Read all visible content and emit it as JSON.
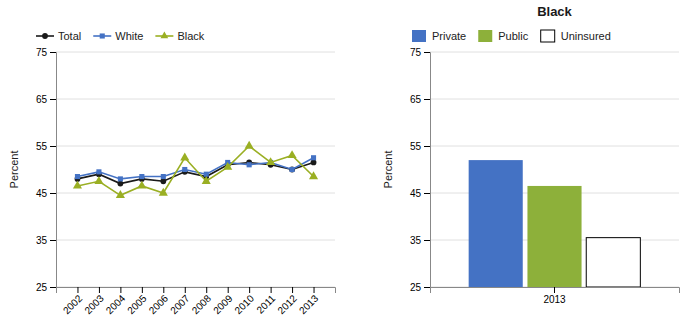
{
  "chart_data": [
    {
      "type": "line",
      "x": [
        2002,
        2003,
        2004,
        2005,
        2006,
        2007,
        2008,
        2009,
        2010,
        2011,
        2012,
        2013
      ],
      "xlim": [
        2001,
        2014
      ],
      "xticks": [
        2002,
        2003,
        2004,
        2005,
        2006,
        2007,
        2008,
        2009,
        2010,
        2011,
        2012,
        2013
      ],
      "series": [
        {
          "name": "Total",
          "color": "#1a1a1a",
          "marker": "circle",
          "values": [
            48.0,
            49.0,
            47.0,
            48.0,
            47.5,
            49.5,
            48.5,
            51.0,
            51.5,
            51.0,
            50.0,
            51.5
          ]
        },
        {
          "name": "White",
          "color": "#4472c4",
          "marker": "square",
          "values": [
            48.5,
            49.5,
            48.0,
            48.5,
            48.5,
            50.0,
            49.0,
            51.5,
            51.0,
            51.5,
            50.0,
            52.5
          ]
        },
        {
          "name": "Black",
          "color": "#9aaf23",
          "marker": "triangle",
          "values": [
            46.5,
            47.5,
            44.5,
            46.5,
            45.0,
            52.5,
            47.5,
            50.5,
            55.0,
            51.5,
            53.0,
            48.5
          ]
        }
      ],
      "ylim": [
        25,
        75
      ],
      "yticks": [
        25,
        35,
        45,
        55,
        65,
        75
      ],
      "ylabel": "Percent",
      "grid": true,
      "legend": "top-left"
    },
    {
      "type": "bar",
      "title": "Black",
      "categories": [
        "2013"
      ],
      "series": [
        {
          "name": "Private",
          "color": "#4472c4",
          "values": [
            52.0
          ]
        },
        {
          "name": "Public",
          "color": "#8db03a",
          "values": [
            46.5
          ]
        },
        {
          "name": "Uninsured",
          "color": "#ffffff",
          "values": [
            35.5
          ]
        }
      ],
      "ylim": [
        25,
        75
      ],
      "yticks": [
        25,
        35,
        45,
        55,
        65,
        75
      ],
      "ylabel": "Percent",
      "grid": true,
      "legend": "top-left"
    }
  ]
}
